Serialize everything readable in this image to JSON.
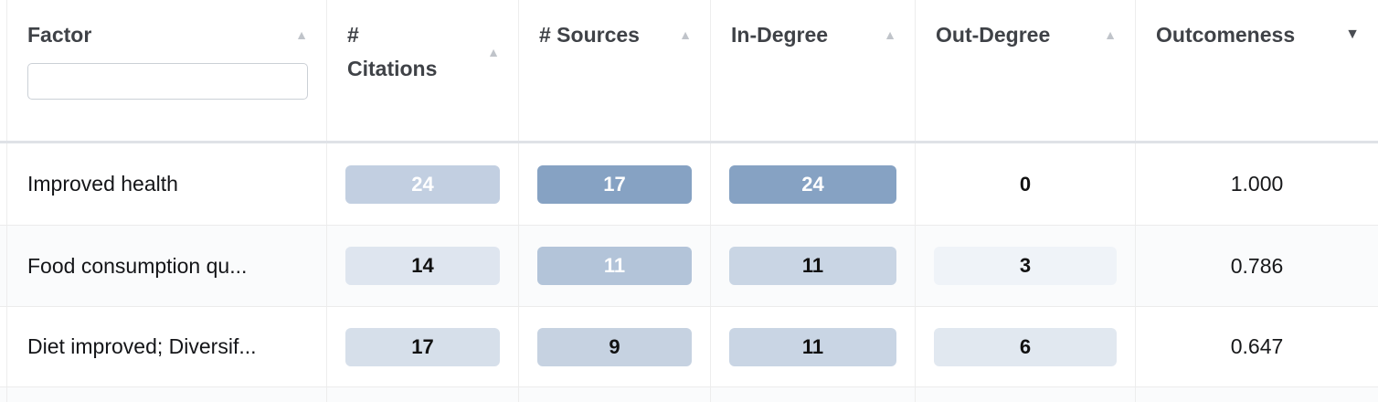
{
  "table": {
    "columns": [
      {
        "key": "factor",
        "label": "Factor",
        "sort_state": "none",
        "sort_glyph": "▲",
        "has_filter": true
      },
      {
        "key": "citations",
        "label": "# Citations",
        "sort_state": "none",
        "sort_glyph": "▲"
      },
      {
        "key": "sources",
        "label": "# Sources",
        "sort_state": "none",
        "sort_glyph": "▲"
      },
      {
        "key": "in_degree",
        "label": "In-Degree",
        "sort_state": "none",
        "sort_glyph": "▲"
      },
      {
        "key": "out_degree",
        "label": "Out-Degree",
        "sort_state": "none",
        "sort_glyph": "▲"
      },
      {
        "key": "outcomeness",
        "label": "Outcomeness",
        "sort_state": "desc",
        "sort_glyph": "▼"
      }
    ],
    "filter": {
      "value": "",
      "placeholder": ""
    },
    "rows": [
      {
        "cells": {
          "factor": "Improved health",
          "citations": {
            "value": "24",
            "bg": "#c2cfe1",
            "fg": "#ffffff"
          },
          "sources": {
            "value": "17",
            "bg": "#86a2c3",
            "fg": "#ffffff"
          },
          "in_degree": {
            "value": "24",
            "bg": "#86a2c3",
            "fg": "#ffffff"
          },
          "out_degree": {
            "value": "0",
            "bg": "transparent",
            "fg": "#111111"
          },
          "outcomeness": "1.000"
        }
      },
      {
        "cells": {
          "factor": "Food consumption qu...",
          "citations": {
            "value": "14",
            "bg": "#dee5ef",
            "fg": "#111111"
          },
          "sources": {
            "value": "11",
            "bg": "#b3c4d9",
            "fg": "#ffffff"
          },
          "in_degree": {
            "value": "11",
            "bg": "#c9d5e4",
            "fg": "#111111"
          },
          "out_degree": {
            "value": "3",
            "bg": "#eff3f8",
            "fg": "#111111"
          },
          "outcomeness": "0.786"
        }
      },
      {
        "cells": {
          "factor": "Diet improved; Diversif...",
          "citations": {
            "value": "17",
            "bg": "#d6dfea",
            "fg": "#111111"
          },
          "sources": {
            "value": "9",
            "bg": "#c6d2e1",
            "fg": "#111111"
          },
          "in_degree": {
            "value": "11",
            "bg": "#c9d5e4",
            "fg": "#111111"
          },
          "out_degree": {
            "value": "6",
            "bg": "#e1e8f0",
            "fg": "#111111"
          },
          "outcomeness": "0.647"
        }
      }
    ]
  },
  "colors": {
    "heat_dark": "#86a2c3",
    "heat_light": "#eff3f8",
    "header_text": "#3f4247",
    "sort_inactive": "#c0c4ca",
    "sort_active": "#4a4d53"
  }
}
